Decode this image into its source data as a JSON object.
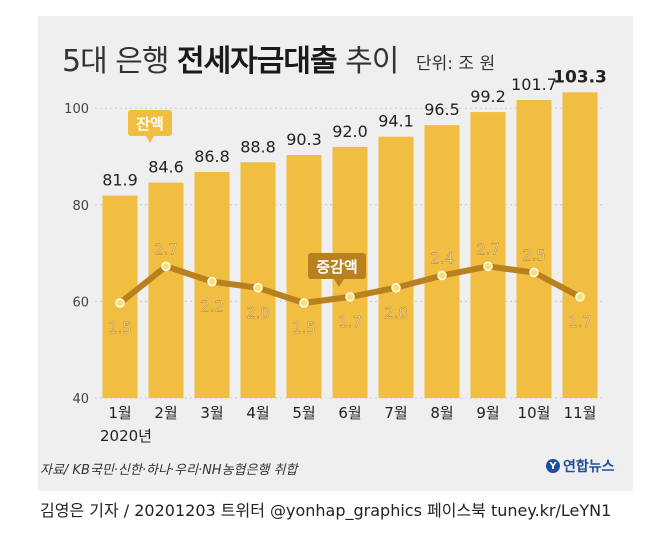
{
  "header": {
    "title_light": "5대 은행",
    "title_bold": "전세자금대출",
    "title_tail": "추이",
    "unit": "단위: 조 원"
  },
  "labels": {
    "balance": "잔액",
    "change": "증감액",
    "year": "2020년"
  },
  "footer": {
    "source": "자료/ KB국민·신한·하나·우리·NH농협은행 취합",
    "credit": "김영은 기자 / 20201203   트위터 @yonhap_graphics  페이스북 tuney.kr/LeYN1",
    "logo": "연합뉴스"
  },
  "colors": {
    "bar": "#f2be42",
    "line": "#b8801e",
    "dot_fill": "#ffe066",
    "change_label": "#f5e2a8",
    "change_badge": "#b8801e"
  },
  "chart_data": {
    "type": "bar",
    "categories": [
      "1월",
      "2월",
      "3월",
      "4월",
      "5월",
      "6월",
      "7월",
      "8월",
      "9월",
      "10월",
      "11월"
    ],
    "series": [
      {
        "name": "잔액",
        "type": "bar",
        "values": [
          81.9,
          84.6,
          86.8,
          88.8,
          90.3,
          92.0,
          94.1,
          96.5,
          99.2,
          101.7,
          103.3
        ]
      },
      {
        "name": "증감액",
        "type": "line",
        "values": [
          1.5,
          2.7,
          2.2,
          2.0,
          1.5,
          1.7,
          2.0,
          2.4,
          2.7,
          2.5,
          1.7
        ]
      }
    ],
    "yticks": [
      40,
      60,
      80,
      100
    ],
    "ylim": [
      40,
      105
    ],
    "grid": true
  }
}
